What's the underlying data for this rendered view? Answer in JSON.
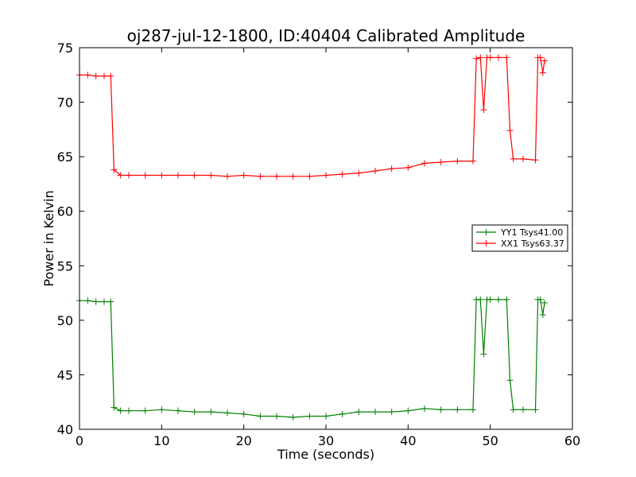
{
  "chart_data": {
    "type": "line",
    "title": "oj287-jul-12-1800, ID:40404 Calibrated Amplitude",
    "xlabel": "Time (seconds)",
    "ylabel": "Power in Kelvin",
    "xlim": [
      0,
      60
    ],
    "ylim": [
      40,
      75
    ],
    "xticks": [
      "0",
      "10",
      "20",
      "30",
      "40",
      "50",
      "60"
    ],
    "yticks": [
      "40",
      "45",
      "50",
      "55",
      "60",
      "65",
      "70",
      "75"
    ],
    "grid": false,
    "legend_position": "right",
    "marker": "+",
    "series": [
      {
        "name": "YY1 Tsys41.00",
        "color": "#008000",
        "x": [
          0,
          1,
          2,
          3,
          3.8,
          4.2,
          5,
          6,
          8,
          10,
          12,
          14,
          16,
          18,
          20,
          22,
          24,
          26,
          28,
          30,
          32,
          34,
          36,
          38,
          40,
          42,
          44,
          46,
          47.9,
          48.3,
          48.8,
          49.2,
          49.6,
          50,
          51,
          52,
          52.4,
          52.8,
          54,
          55.5,
          55.8,
          56.1,
          56.4,
          56.6
        ],
        "values": [
          51.8,
          51.8,
          51.7,
          51.7,
          51.7,
          42.0,
          41.7,
          41.7,
          41.7,
          41.8,
          41.7,
          41.6,
          41.6,
          41.5,
          41.4,
          41.2,
          41.2,
          41.1,
          41.2,
          41.2,
          41.4,
          41.6,
          41.6,
          41.6,
          41.7,
          41.9,
          41.8,
          41.8,
          41.8,
          51.9,
          51.9,
          46.9,
          51.9,
          51.9,
          51.9,
          51.9,
          44.5,
          41.8,
          41.8,
          41.8,
          51.9,
          51.9,
          50.5,
          51.6
        ]
      },
      {
        "name": "XX1 Tsys63.37",
        "color": "#ff0000",
        "x": [
          0,
          1,
          2,
          3,
          3.8,
          4.2,
          5,
          6,
          8,
          10,
          12,
          14,
          16,
          18,
          20,
          22,
          24,
          26,
          28,
          30,
          32,
          34,
          36,
          38,
          40,
          42,
          44,
          46,
          47.9,
          48.3,
          48.8,
          49.2,
          49.6,
          50,
          51,
          52,
          52.4,
          52.8,
          54,
          55.5,
          55.8,
          56.1,
          56.4,
          56.6
        ],
        "values": [
          72.5,
          72.5,
          72.4,
          72.4,
          72.4,
          63.8,
          63.3,
          63.3,
          63.3,
          63.3,
          63.3,
          63.3,
          63.3,
          63.2,
          63.3,
          63.2,
          63.2,
          63.2,
          63.2,
          63.3,
          63.4,
          63.5,
          63.7,
          63.9,
          64.0,
          64.4,
          64.5,
          64.6,
          64.6,
          74.0,
          74.1,
          69.3,
          74.1,
          74.1,
          74.1,
          74.1,
          67.4,
          64.8,
          64.8,
          64.7,
          74.1,
          74.1,
          72.7,
          73.8
        ]
      }
    ]
  }
}
